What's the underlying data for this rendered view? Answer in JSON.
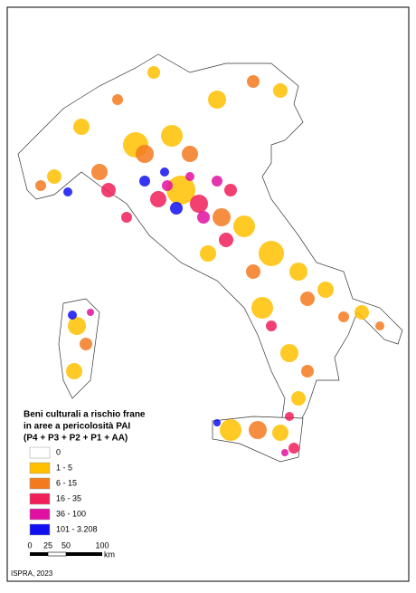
{
  "legend": {
    "title": [
      "Beni culturali a rischio frane",
      "in aree a pericolosità PAI",
      "(P4 + P3 + P2 + P1 + AA)"
    ],
    "items": [
      {
        "label": "0",
        "color": "#ffffff"
      },
      {
        "label": "1 - 5",
        "color": "#ffc000"
      },
      {
        "label": "6 - 15",
        "color": "#f47a20"
      },
      {
        "label": "16 - 35",
        "color": "#f01f5a"
      },
      {
        "label": "36 - 100",
        "color": "#e010a0"
      },
      {
        "label": "101 - 3.208",
        "color": "#1010f0"
      }
    ]
  },
  "scale_bar": {
    "labels": [
      "0",
      "25",
      "50",
      "100"
    ],
    "unit": "km"
  },
  "source": "ISPRA, 2023"
}
